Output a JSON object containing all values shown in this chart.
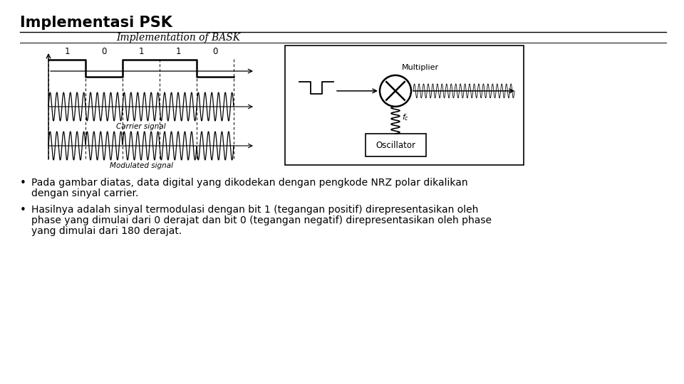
{
  "title": "Implementasi PSK",
  "subtitle": "Implementation of BASK",
  "bg_color": "#ffffff",
  "title_fontsize": 15,
  "subtitle_fontsize": 10,
  "bits": [
    1,
    0,
    1,
    1,
    0
  ],
  "bullet1_line1": "Pada gambar diatas, data digital yang dikodekan dengan pengkode NRZ polar dikalikan",
  "bullet1_line2": "dengan sinyal carrier.",
  "bullet2_line1": "Hasilnya adalah sinyal termodulasi dengan bit 1 (tegangan positif) direpresentasikan oleh",
  "bullet2_line2": "phase yang dimulai dari 0 derajat dan bit 0 (tegangan negatif) direpresentasikan oleh phase",
  "bullet2_line3": "yang dimulai dari 180 derajat.",
  "text_color": "#000000",
  "body_fontsize": 10
}
